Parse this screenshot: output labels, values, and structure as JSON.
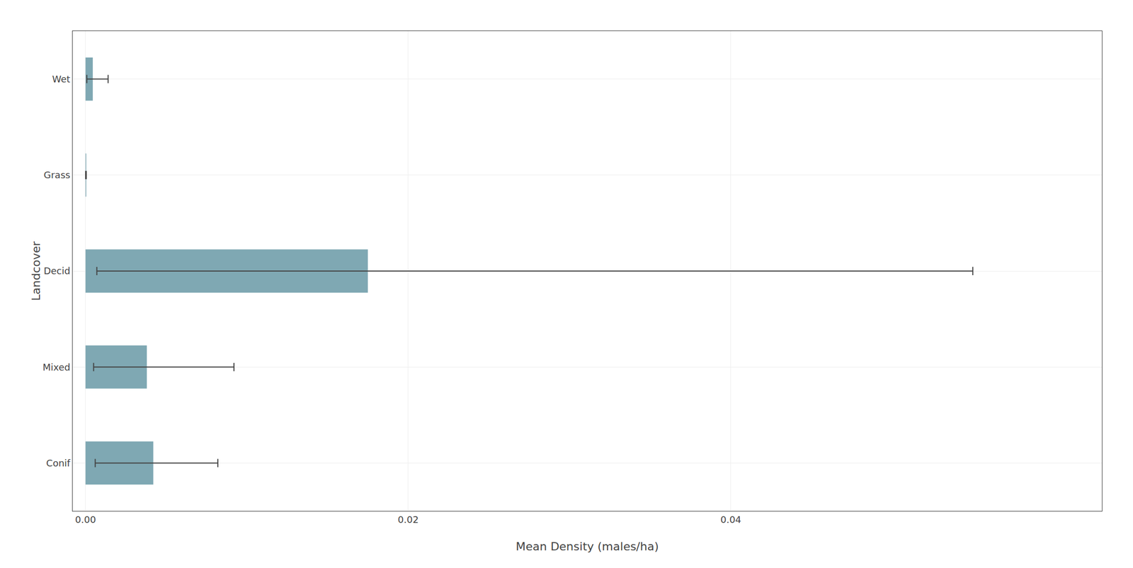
{
  "chart_data": {
    "type": "bar",
    "orientation": "horizontal",
    "categories": [
      "Wet",
      "Grass",
      "Decid",
      "Mixed",
      "Conif"
    ],
    "values": [
      0.00045,
      4.5e-05,
      0.0175,
      0.0038,
      0.0042
    ],
    "ci_low": [
      8e-05,
      8e-06,
      0.0007,
      0.0005,
      0.0006
    ],
    "ci_high": [
      0.0014,
      4.5e-05,
      0.055,
      0.0092,
      0.0082
    ],
    "color": "#7fa8b3",
    "x_label": "Mean Density (males/ha)",
    "y_label": "Landcover",
    "xlim": [
      -0.0008,
      0.063
    ],
    "xticks": [
      {
        "value": 0,
        "label": "0.00"
      },
      0.02,
      0.04
    ],
    "grid": true
  }
}
